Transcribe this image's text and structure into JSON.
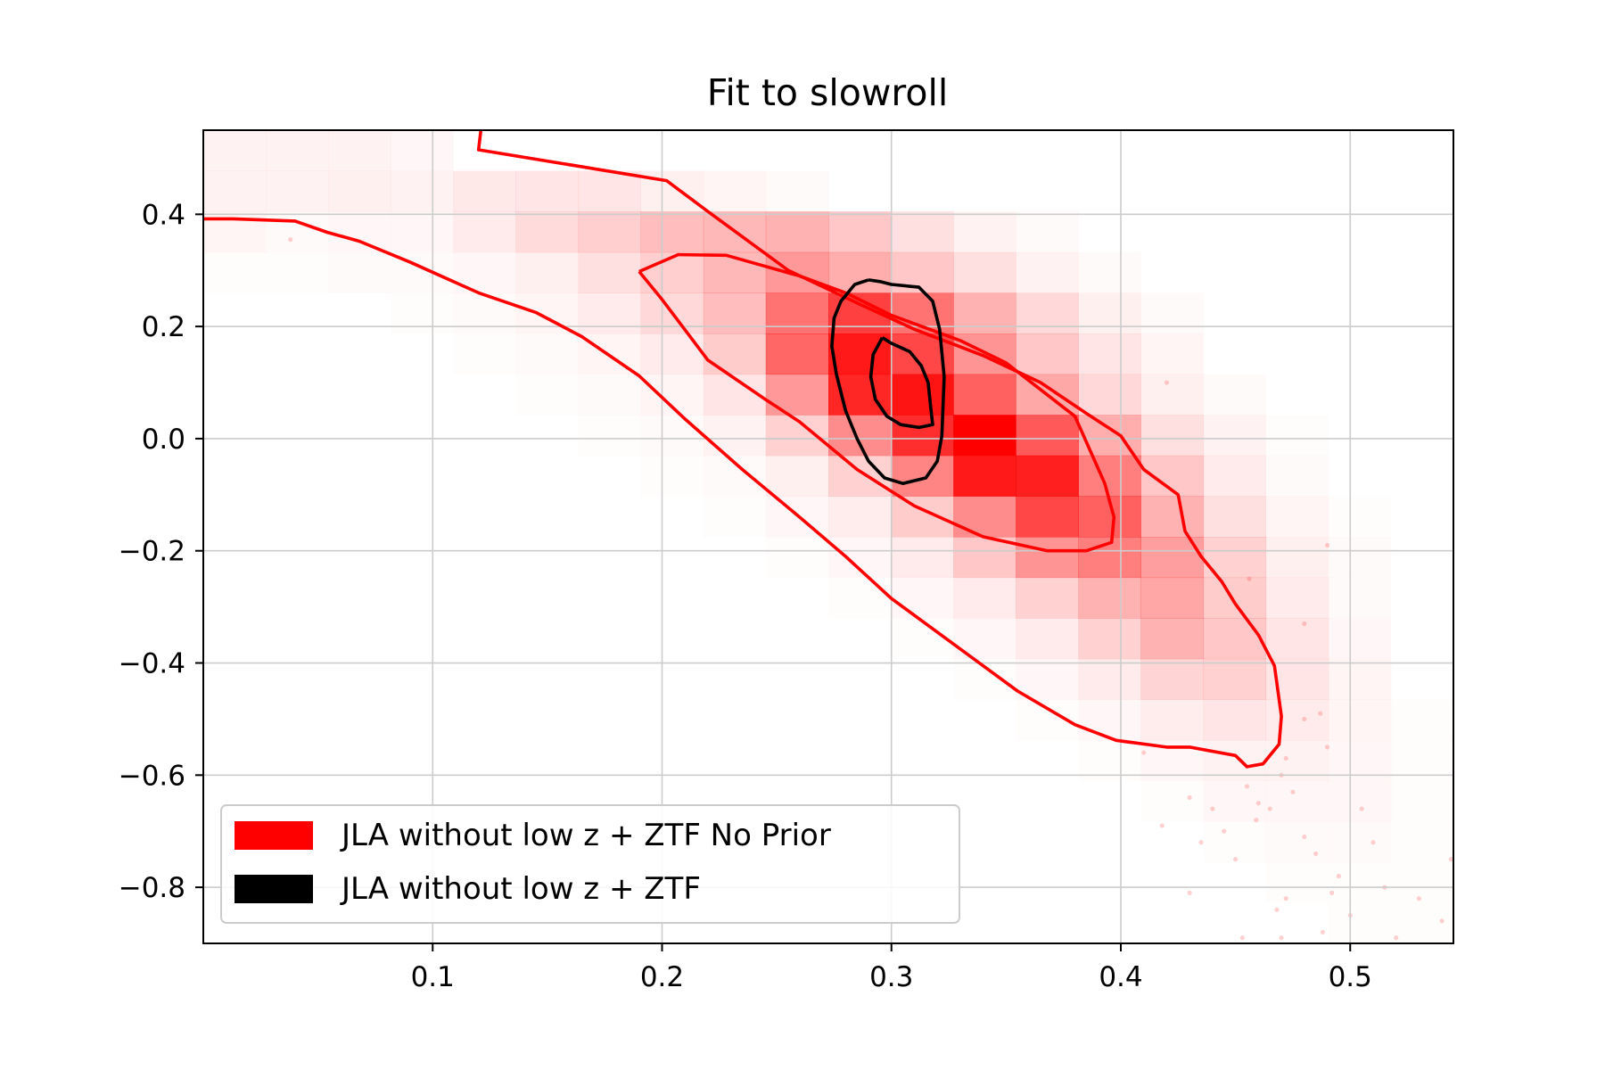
{
  "chart_data": {
    "type": "heatmap",
    "title": "Fit to slowroll",
    "xlabel": "",
    "ylabel": "",
    "xlim": [
      0.0,
      0.545
    ],
    "ylim": [
      -0.9,
      0.55
    ],
    "xticks": [
      0.1,
      0.2,
      0.3,
      0.4,
      0.5
    ],
    "xtick_labels": [
      "0.1",
      "0.2",
      "0.3",
      "0.4",
      "0.5"
    ],
    "yticks": [
      0.4,
      0.2,
      0.0,
      -0.2,
      -0.4,
      -0.6,
      -0.8
    ],
    "ytick_labels": [
      "0.4",
      "0.2",
      "0.0",
      "−0.2",
      "−0.4",
      "−0.6",
      "−0.8"
    ],
    "grid": true,
    "colors": {
      "nopprior": "#ff0000",
      "ztf": "#000000",
      "grid": "#cccccc"
    },
    "histogram": {
      "name": "JLA without low z + ZTF No Prior samples",
      "x_edges": [
        0.0,
        0.0272,
        0.0545,
        0.0817,
        0.109,
        0.1362,
        0.1635,
        0.1907,
        0.218,
        0.2452,
        0.2725,
        0.2997,
        0.327,
        0.3542,
        0.3815,
        0.4087,
        0.436,
        0.4632,
        0.4905,
        0.5177,
        0.545
      ],
      "y_edges": [
        0.55,
        0.4775,
        0.405,
        0.3325,
        0.26,
        0.1875,
        0.115,
        0.0425,
        -0.03,
        -0.1025,
        -0.175,
        -0.2475,
        -0.32,
        -0.3925,
        -0.465,
        -0.5375,
        -0.61,
        -0.6825,
        -0.755,
        -0.8275,
        -0.9
      ],
      "density": [
        [
          0.05,
          0.05,
          0.05,
          0.03,
          0.0,
          0.0,
          0.0,
          0.0,
          0.0,
          0.0,
          0.0,
          0.0,
          0.0,
          0.0,
          0.0,
          0.0,
          0.0,
          0.0,
          0.0,
          0.0
        ],
        [
          0.05,
          0.05,
          0.06,
          0.05,
          0.09,
          0.1,
          0.1,
          0.06,
          0.04,
          0.02,
          0.0,
          0.0,
          0.0,
          0.0,
          0.0,
          0.0,
          0.0,
          0.0,
          0.0,
          0.0
        ],
        [
          0.04,
          0.02,
          0.03,
          0.03,
          0.08,
          0.14,
          0.19,
          0.26,
          0.28,
          0.3,
          0.22,
          0.12,
          0.05,
          0.02,
          0.0,
          0.0,
          0.0,
          0.0,
          0.0,
          0.0
        ],
        [
          0.01,
          0.01,
          0.02,
          0.02,
          0.03,
          0.06,
          0.12,
          0.19,
          0.28,
          0.4,
          0.32,
          0.22,
          0.12,
          0.05,
          0.02,
          0.0,
          0.0,
          0.0,
          0.0,
          0.0
        ],
        [
          0.0,
          0.0,
          0.0,
          0.01,
          0.02,
          0.04,
          0.08,
          0.15,
          0.26,
          0.55,
          0.75,
          0.55,
          0.3,
          0.15,
          0.06,
          0.02,
          0.0,
          0.0,
          0.0,
          0.0
        ],
        [
          0.0,
          0.0,
          0.0,
          0.0,
          0.01,
          0.02,
          0.04,
          0.08,
          0.2,
          0.6,
          0.9,
          0.72,
          0.42,
          0.22,
          0.1,
          0.04,
          0.0,
          0.0,
          0.0,
          0.0
        ],
        [
          0.0,
          0.0,
          0.0,
          0.0,
          0.0,
          0.01,
          0.02,
          0.04,
          0.1,
          0.4,
          0.85,
          0.92,
          0.62,
          0.34,
          0.15,
          0.06,
          0.02,
          0.0,
          0.0,
          0.0
        ],
        [
          0.0,
          0.0,
          0.0,
          0.0,
          0.0,
          0.0,
          0.01,
          0.02,
          0.05,
          0.18,
          0.45,
          0.82,
          1.0,
          0.65,
          0.32,
          0.12,
          0.05,
          0.01,
          0.0,
          0.0
        ],
        [
          0.0,
          0.0,
          0.0,
          0.0,
          0.0,
          0.0,
          0.0,
          0.01,
          0.02,
          0.06,
          0.18,
          0.48,
          0.9,
          0.88,
          0.5,
          0.22,
          0.08,
          0.02,
          0.0,
          0.0
        ],
        [
          0.0,
          0.0,
          0.0,
          0.0,
          0.0,
          0.0,
          0.0,
          0.0,
          0.01,
          0.03,
          0.07,
          0.2,
          0.45,
          0.72,
          0.62,
          0.3,
          0.12,
          0.04,
          0.01,
          0.0
        ],
        [
          0.0,
          0.0,
          0.0,
          0.0,
          0.0,
          0.0,
          0.0,
          0.0,
          0.0,
          0.01,
          0.03,
          0.08,
          0.22,
          0.42,
          0.5,
          0.38,
          0.18,
          0.06,
          0.02,
          0.0
        ],
        [
          0.0,
          0.0,
          0.0,
          0.0,
          0.0,
          0.0,
          0.0,
          0.0,
          0.0,
          0.0,
          0.01,
          0.03,
          0.08,
          0.18,
          0.3,
          0.35,
          0.2,
          0.08,
          0.02,
          0.0
        ],
        [
          0.0,
          0.0,
          0.0,
          0.0,
          0.0,
          0.0,
          0.0,
          0.0,
          0.0,
          0.0,
          0.0,
          0.01,
          0.03,
          0.08,
          0.18,
          0.3,
          0.22,
          0.1,
          0.03,
          0.0
        ],
        [
          0.0,
          0.0,
          0.0,
          0.0,
          0.0,
          0.0,
          0.0,
          0.0,
          0.0,
          0.0,
          0.0,
          0.0,
          0.01,
          0.03,
          0.08,
          0.17,
          0.18,
          0.1,
          0.04,
          0.0
        ],
        [
          0.0,
          0.0,
          0.0,
          0.0,
          0.0,
          0.0,
          0.0,
          0.0,
          0.0,
          0.0,
          0.0,
          0.0,
          0.0,
          0.01,
          0.03,
          0.07,
          0.1,
          0.08,
          0.04,
          0.01
        ],
        [
          0.0,
          0.0,
          0.0,
          0.0,
          0.0,
          0.0,
          0.0,
          0.0,
          0.0,
          0.0,
          0.0,
          0.0,
          0.0,
          0.0,
          0.01,
          0.03,
          0.05,
          0.05,
          0.03,
          0.01
        ],
        [
          0.0,
          0.0,
          0.0,
          0.0,
          0.0,
          0.0,
          0.0,
          0.0,
          0.0,
          0.0,
          0.0,
          0.0,
          0.0,
          0.0,
          0.0,
          0.01,
          0.03,
          0.03,
          0.03,
          0.01
        ],
        [
          0.0,
          0.0,
          0.0,
          0.0,
          0.0,
          0.0,
          0.0,
          0.0,
          0.0,
          0.0,
          0.0,
          0.0,
          0.0,
          0.0,
          0.0,
          0.0,
          0.01,
          0.02,
          0.02,
          0.01
        ],
        [
          0.0,
          0.0,
          0.0,
          0.0,
          0.0,
          0.0,
          0.0,
          0.0,
          0.0,
          0.0,
          0.0,
          0.0,
          0.0,
          0.0,
          0.0,
          0.0,
          0.0,
          0.01,
          0.01,
          0.01
        ],
        [
          0.0,
          0.0,
          0.0,
          0.0,
          0.0,
          0.0,
          0.0,
          0.0,
          0.0,
          0.0,
          0.0,
          0.0,
          0.0,
          0.0,
          0.0,
          0.0,
          0.0,
          0.0,
          0.01,
          0.01
        ]
      ]
    },
    "scatter_outliers": [
      [
        0.038,
        0.355
      ],
      [
        0.456,
        -0.25
      ],
      [
        0.49,
        -0.19
      ],
      [
        0.48,
        -0.33
      ],
      [
        0.42,
        0.1
      ],
      [
        0.41,
        -0.56
      ],
      [
        0.418,
        -0.69
      ],
      [
        0.43,
        -0.64
      ],
      [
        0.44,
        -0.66
      ],
      [
        0.445,
        -0.7
      ],
      [
        0.435,
        -0.72
      ],
      [
        0.45,
        -0.75
      ],
      [
        0.455,
        -0.62
      ],
      [
        0.46,
        -0.65
      ],
      [
        0.47,
        -0.6
      ],
      [
        0.475,
        -0.63
      ],
      [
        0.48,
        -0.71
      ],
      [
        0.485,
        -0.74
      ],
      [
        0.49,
        -0.55
      ],
      [
        0.495,
        -0.78
      ],
      [
        0.5,
        -0.85
      ],
      [
        0.505,
        -0.66
      ],
      [
        0.51,
        -0.72
      ],
      [
        0.515,
        -0.8
      ],
      [
        0.52,
        -0.89
      ],
      [
        0.53,
        -0.82
      ],
      [
        0.54,
        -0.86
      ],
      [
        0.544,
        -0.75
      ],
      [
        0.468,
        -0.84
      ],
      [
        0.472,
        -0.82
      ],
      [
        0.488,
        -0.88
      ],
      [
        0.459,
        -0.68
      ],
      [
        0.465,
        -0.66
      ],
      [
        0.472,
        -0.57
      ],
      [
        0.48,
        -0.5
      ],
      [
        0.487,
        -0.49
      ],
      [
        0.492,
        -0.81
      ],
      [
        0.453,
        -0.89
      ],
      [
        0.43,
        -0.81
      ],
      [
        0.47,
        -0.89
      ]
    ],
    "series": [
      {
        "name": "JLA without low z + ZTF No Prior",
        "color": "#ff0000",
        "contours": [
          {
            "level": "outer",
            "x": [
              0.0,
              0.013,
              0.04,
              0.054,
              0.068,
              0.09,
              0.12,
              0.145,
              0.165,
              0.19,
              0.21,
              0.235,
              0.26,
              0.28,
              0.3,
              0.325,
              0.355,
              0.38,
              0.398,
              0.42,
              0.43,
              0.45,
              0.455,
              0.462,
              0.469,
              0.47,
              0.467,
              0.46,
              0.45,
              0.444,
              0.435,
              0.428,
              0.425,
              0.41,
              0.4,
              0.385,
              0.365,
              0.34,
              0.31,
              0.285,
              0.255,
              0.22,
              0.202,
              0.12,
              0.121
            ],
            "y": [
              0.392,
              0.392,
              0.388,
              0.368,
              0.352,
              0.315,
              0.26,
              0.225,
              0.182,
              0.112,
              0.035,
              -0.055,
              -0.14,
              -0.21,
              -0.285,
              -0.36,
              -0.45,
              -0.51,
              -0.538,
              -0.55,
              -0.55,
              -0.565,
              -0.585,
              -0.58,
              -0.545,
              -0.495,
              -0.405,
              -0.35,
              -0.295,
              -0.255,
              -0.21,
              -0.165,
              -0.1,
              -0.055,
              0.005,
              0.045,
              0.1,
              0.148,
              0.195,
              0.242,
              0.3,
              0.405,
              0.46,
              0.515,
              0.55
            ]
          },
          {
            "level": "inner",
            "x": [
              0.19,
              0.207,
              0.228,
              0.26,
              0.28,
              0.3,
              0.33,
              0.35,
              0.38,
              0.393,
              0.397,
              0.396,
              0.385,
              0.368,
              0.34,
              0.31,
              0.285,
              0.26,
              0.245,
              0.22,
              0.2,
              0.19
            ],
            "y": [
              0.298,
              0.328,
              0.327,
              0.29,
              0.26,
              0.22,
              0.175,
              0.135,
              0.04,
              -0.08,
              -0.14,
              -0.185,
              -0.2,
              -0.2,
              -0.175,
              -0.12,
              -0.055,
              0.03,
              0.07,
              0.14,
              0.248,
              0.298
            ]
          }
        ]
      },
      {
        "name": "JLA without low z + ZTF",
        "color": "#000000",
        "contours": [
          {
            "level": "outer",
            "x": [
              0.29,
              0.295,
              0.3,
              0.312,
              0.318,
              0.321,
              0.323,
              0.322,
              0.32,
              0.315,
              0.305,
              0.297,
              0.29,
              0.285,
              0.28,
              0.276,
              0.274,
              0.275,
              0.278,
              0.284,
              0.29
            ],
            "y": [
              0.283,
              0.28,
              0.275,
              0.27,
              0.245,
              0.195,
              0.11,
              0.005,
              -0.04,
              -0.07,
              -0.08,
              -0.07,
              -0.04,
              0.0,
              0.05,
              0.115,
              0.165,
              0.215,
              0.245,
              0.275,
              0.283
            ]
          },
          {
            "level": "inner",
            "x": [
              0.296,
              0.3,
              0.308,
              0.313,
              0.316,
              0.317,
              0.318,
              0.312,
              0.304,
              0.298,
              0.293,
              0.291,
              0.292,
              0.296
            ],
            "y": [
              0.18,
              0.17,
              0.155,
              0.13,
              0.1,
              0.06,
              0.025,
              0.02,
              0.025,
              0.04,
              0.07,
              0.11,
              0.15,
              0.18
            ]
          }
        ]
      }
    ],
    "legend": {
      "position": "lower-left",
      "entries": [
        {
          "label": "JLA without low z + ZTF No Prior",
          "color": "#ff0000"
        },
        {
          "label": "JLA without low z + ZTF",
          "color": "#000000"
        }
      ]
    }
  }
}
